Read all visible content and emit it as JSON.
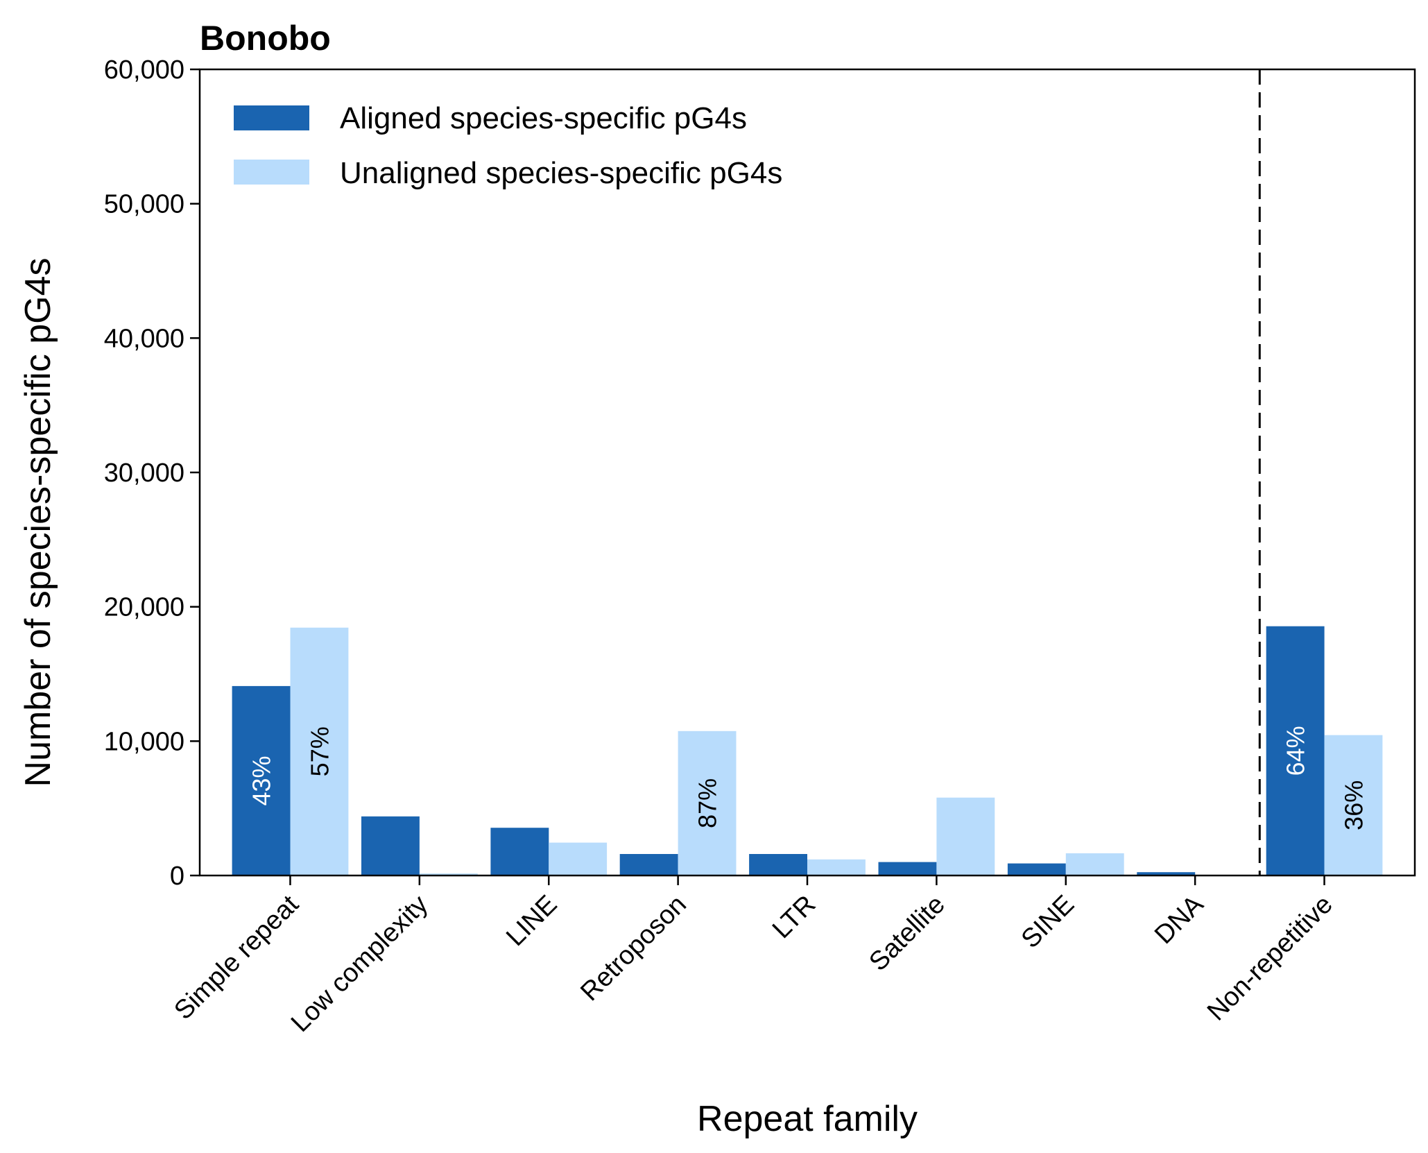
{
  "chart_data": {
    "type": "bar",
    "title": "Bonobo",
    "xlabel": "Repeat family",
    "ylabel": "Number of species-specific pG4s",
    "ylim": [
      0,
      60000
    ],
    "yticks": [
      0,
      10000,
      20000,
      30000,
      40000,
      50000,
      60000
    ],
    "ytick_labels": [
      "0",
      "10,000",
      "20,000",
      "30,000",
      "40,000",
      "50,000",
      "60,000"
    ],
    "categories": [
      "Simple repeat",
      "Low complexity",
      "LINE",
      "Retroposon",
      "LTR",
      "Satellite",
      "SINE",
      "DNA",
      "Non-repetitive"
    ],
    "series": [
      {
        "name": "Aligned species-specific pG4s",
        "color": "#1a64b0",
        "values": [
          14100,
          4400,
          3550,
          1600,
          1600,
          1000,
          900,
          250,
          18550
        ],
        "labels": [
          "43%",
          "",
          "",
          "",
          "",
          "",
          "",
          "",
          "64%"
        ]
      },
      {
        "name": "Unaligned species-specific pG4s",
        "color": "#b8dcfc",
        "values": [
          18450,
          150,
          2450,
          10750,
          1200,
          5800,
          1650,
          50,
          10450
        ],
        "labels": [
          "57%",
          "",
          "",
          "87%",
          "",
          "",
          "",
          "",
          "36%"
        ]
      }
    ],
    "legend_position": "top-left",
    "grid": false,
    "separator_line": "dashed vertical line between DNA and Non-repetitive"
  }
}
